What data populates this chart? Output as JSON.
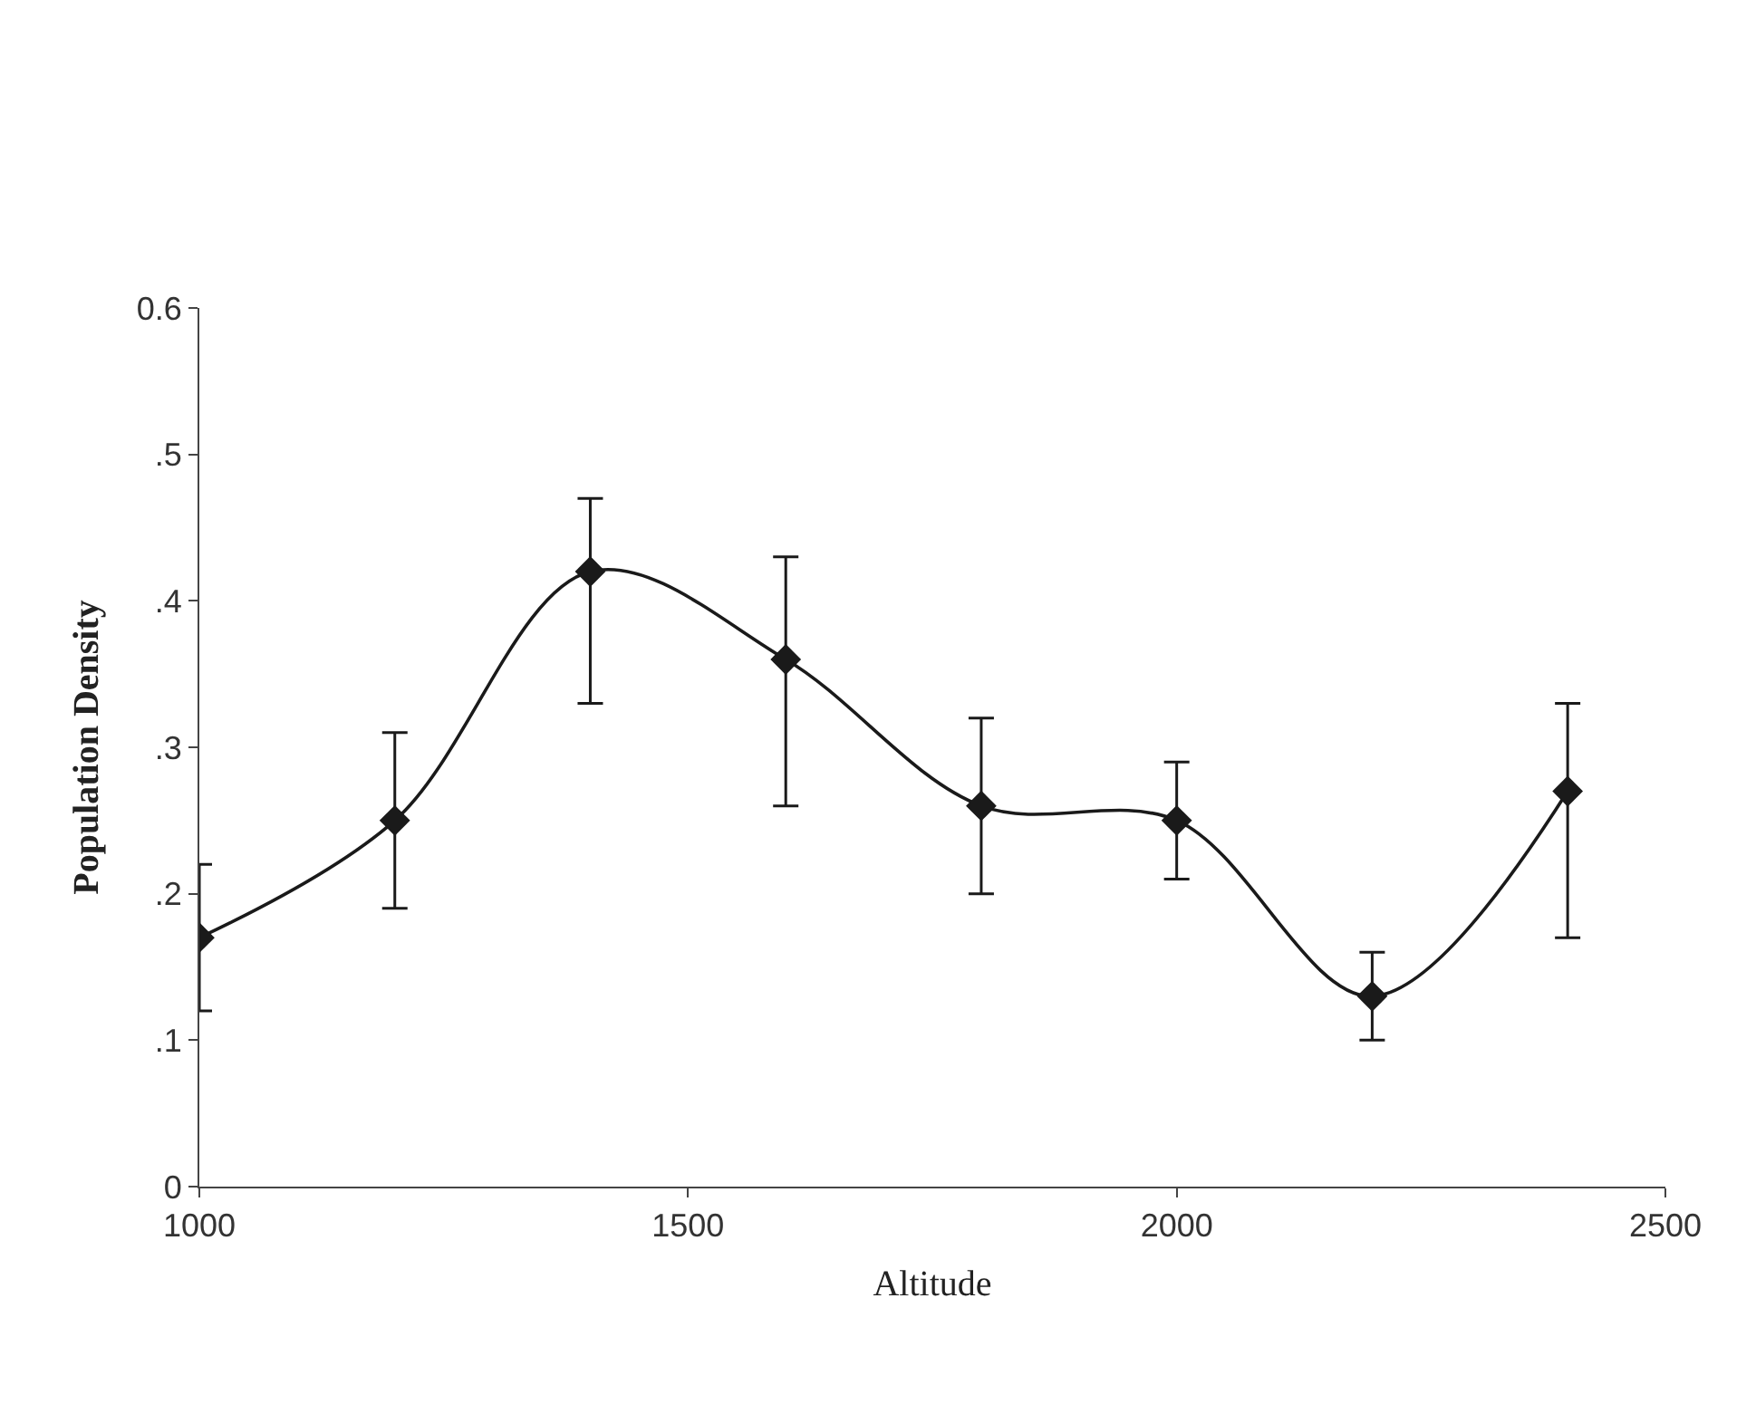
{
  "chart_data": {
    "type": "line",
    "xlabel": "Altitude",
    "ylabel": "Population Density",
    "x": [
      1000,
      1200,
      1400,
      1600,
      1800,
      2000,
      2200,
      2400
    ],
    "series": [
      {
        "color": "#1a1a1a",
        "values": [
          0.17,
          0.25,
          0.42,
          0.36,
          0.26,
          0.25,
          0.13,
          0.27
        ],
        "errors": [
          [
            0.12,
            0.22
          ],
          [
            0.19,
            0.31
          ],
          [
            0.33,
            0.47
          ],
          [
            0.26,
            0.43
          ],
          [
            0.2,
            0.32
          ],
          [
            0.21,
            0.29
          ],
          [
            0.1,
            0.16
          ],
          [
            0.17,
            0.33
          ]
        ]
      }
    ],
    "xlim": [
      1000,
      2500
    ],
    "xticks": [
      1000,
      1500,
      2000,
      2500
    ],
    "ylim": [
      0,
      0.6
    ],
    "yticks": [
      {
        "value": 0,
        "label": "0"
      },
      {
        "value": 0.1,
        "label": ".1"
      },
      {
        "value": 0.2,
        "label": ".2"
      },
      {
        "value": 0.3,
        "label": ".3"
      },
      {
        "value": 0.4,
        "label": ".4"
      },
      {
        "value": 0.5,
        "label": ".5"
      },
      {
        "value": 0.6,
        "label": "0.6"
      }
    ],
    "marker": "diamond",
    "line_style": "solid"
  }
}
